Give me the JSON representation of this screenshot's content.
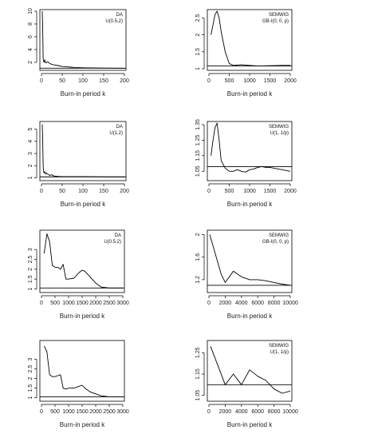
{
  "chart_data": [
    {
      "type": "line",
      "xlabel": "Burn-in period k",
      "legend": [
        "DA",
        "U(0.5,2)"
      ],
      "xlim": [
        0,
        200
      ],
      "ylim": [
        1,
        10
      ],
      "xticks": [
        0,
        50,
        100,
        150,
        200
      ],
      "yticks": [
        2,
        4,
        6,
        8,
        10
      ],
      "ref_y": 1.08,
      "x": [
        2,
        3,
        4,
        6,
        8,
        10,
        15,
        20,
        25,
        30,
        40,
        50,
        60,
        70,
        80,
        100,
        120,
        150,
        200
      ],
      "y": [
        10,
        6.8,
        2.6,
        2.0,
        2.4,
        1.9,
        2.1,
        1.8,
        1.7,
        1.6,
        1.5,
        1.35,
        1.3,
        1.25,
        1.2,
        1.15,
        1.12,
        1.1,
        1.08
      ]
    },
    {
      "type": "line",
      "xlabel": "Burn-in period k",
      "legend": [
        "SEMWIG",
        "GB-I(0, 0, p)"
      ],
      "xlim": [
        0,
        2000
      ],
      "ylim": [
        1,
        2.7
      ],
      "xticks": [
        0,
        500,
        1000,
        1500,
        2000
      ],
      "yticks": [
        1.0,
        1.5,
        2.0,
        2.5
      ],
      "ref_y": 1.08,
      "x": [
        50,
        100,
        150,
        200,
        250,
        300,
        400,
        500,
        600,
        800,
        1000,
        1200,
        1500,
        1800,
        2000
      ],
      "y": [
        2.0,
        2.3,
        2.6,
        2.7,
        2.5,
        2.1,
        1.5,
        1.15,
        1.1,
        1.12,
        1.1,
        1.08,
        1.09,
        1.1,
        1.1
      ]
    },
    {
      "type": "line",
      "xlabel": "Burn-in period k",
      "legend": [
        "DA",
        "U(1,2)"
      ],
      "xlim": [
        0,
        200
      ],
      "ylim": [
        0.9,
        5.5
      ],
      "xticks": [
        0,
        50,
        100,
        150,
        200
      ],
      "yticks": [
        1,
        2,
        3,
        4,
        5
      ],
      "ref_y": 1.08,
      "x": [
        2,
        3,
        4,
        5,
        6,
        8,
        10,
        12,
        15,
        20,
        25,
        30,
        40,
        50,
        100,
        150,
        200
      ],
      "y": [
        5.4,
        4.0,
        2.0,
        1.6,
        1.4,
        1.5,
        1.3,
        1.4,
        1.3,
        1.2,
        1.25,
        1.15,
        1.12,
        1.1,
        1.1,
        1.08,
        1.08
      ]
    },
    {
      "type": "line",
      "xlabel": "Burn-in period k",
      "legend": [
        "SEMWIG",
        "U(1, 1/p)"
      ],
      "xlim": [
        0,
        2000
      ],
      "ylim": [
        1.0,
        1.36
      ],
      "xticks": [
        0,
        500,
        1000,
        1500,
        2000
      ],
      "yticks": [
        1.05,
        1.15,
        1.25,
        1.35
      ],
      "ref_y": 1.08,
      "x": [
        50,
        100,
        150,
        200,
        250,
        300,
        400,
        500,
        600,
        700,
        800,
        900,
        1000,
        1100,
        1200,
        1300,
        1400,
        1500,
        1600,
        1700,
        1800,
        1900,
        2000
      ],
      "y": [
        1.15,
        1.25,
        1.33,
        1.36,
        1.25,
        1.12,
        1.07,
        1.05,
        1.05,
        1.06,
        1.05,
        1.045,
        1.06,
        1.065,
        1.075,
        1.08,
        1.075,
        1.075,
        1.07,
        1.065,
        1.06,
        1.055,
        1.05
      ]
    },
    {
      "type": "line",
      "xlabel": "Burn-in period k",
      "legend": [
        "DA",
        "U(0.5,2)"
      ],
      "xlim": [
        0,
        3000
      ],
      "ylim": [
        0.9,
        3.9
      ],
      "xticks": [
        0,
        500,
        1000,
        1500,
        2000,
        2500,
        3000
      ],
      "yticks": [
        1.0,
        1.5,
        2.0,
        2.5,
        3.0
      ],
      "ref_y": 1.05,
      "x": [
        100,
        200,
        300,
        400,
        500,
        600,
        700,
        800,
        900,
        1000,
        1200,
        1400,
        1500,
        1600,
        1800,
        2000,
        2200,
        2500,
        3000
      ],
      "y": [
        2.8,
        3.8,
        3.4,
        2.2,
        2.1,
        2.1,
        2.0,
        2.25,
        1.5,
        1.5,
        1.55,
        1.85,
        1.95,
        1.9,
        1.6,
        1.3,
        1.1,
        1.05,
        1.05
      ]
    },
    {
      "type": "line",
      "xlabel": "Burn-in period k",
      "legend": [
        "SEMWIG",
        "GB-I(0, 0, p)"
      ],
      "xlim": [
        0,
        10000
      ],
      "ylim": [
        1.0,
        2.05
      ],
      "xticks": [
        0,
        2000,
        4000,
        6000,
        8000,
        10000
      ],
      "yticks": [
        1.2,
        1.6,
        2.0
      ],
      "ref_y": 1.1,
      "x": [
        100,
        500,
        1000,
        1500,
        2000,
        3000,
        4000,
        5000,
        6000,
        7000,
        8000,
        9000,
        10000
      ],
      "y": [
        2.0,
        1.8,
        1.55,
        1.3,
        1.15,
        1.35,
        1.25,
        1.2,
        1.2,
        1.18,
        1.15,
        1.12,
        1.1
      ]
    },
    {
      "type": "line",
      "xlabel": "Burn-in period k",
      "legend": [],
      "xlim": [
        0,
        3000
      ],
      "ylim": [
        0.9,
        3.9
      ],
      "xticks": [
        0,
        500,
        1000,
        1500,
        2000,
        2500,
        3000
      ],
      "yticks": [
        1.0,
        1.5,
        2.0,
        2.5,
        3.0
      ],
      "ref_y": 1.05,
      "x": [
        100,
        200,
        300,
        400,
        500,
        600,
        700,
        800,
        900,
        1000,
        1200,
        1400,
        1500,
        1600,
        1800,
        2000,
        2200,
        2500,
        3000
      ],
      "y": [
        3.7,
        3.4,
        2.2,
        2.1,
        2.1,
        2.15,
        2.2,
        1.5,
        1.45,
        1.5,
        1.5,
        1.6,
        1.65,
        1.5,
        1.3,
        1.2,
        1.1,
        1.05,
        1.05
      ]
    },
    {
      "type": "line",
      "xlabel": "Burn-in period k",
      "legend": [
        "SEMWIG",
        "U(1, 1/p)"
      ],
      "xlim": [
        0,
        10000
      ],
      "ylim": [
        1.03,
        1.3
      ],
      "xticks": [
        0,
        2000,
        4000,
        6000,
        8000,
        10000
      ],
      "yticks": [
        1.05,
        1.15,
        1.25
      ],
      "ref_y": 1.1,
      "x": [
        200,
        1000,
        2000,
        3000,
        4000,
        5000,
        6000,
        7000,
        8000,
        9000,
        10000
      ],
      "y": [
        1.28,
        1.2,
        1.1,
        1.15,
        1.1,
        1.17,
        1.14,
        1.12,
        1.08,
        1.06,
        1.07
      ]
    }
  ]
}
